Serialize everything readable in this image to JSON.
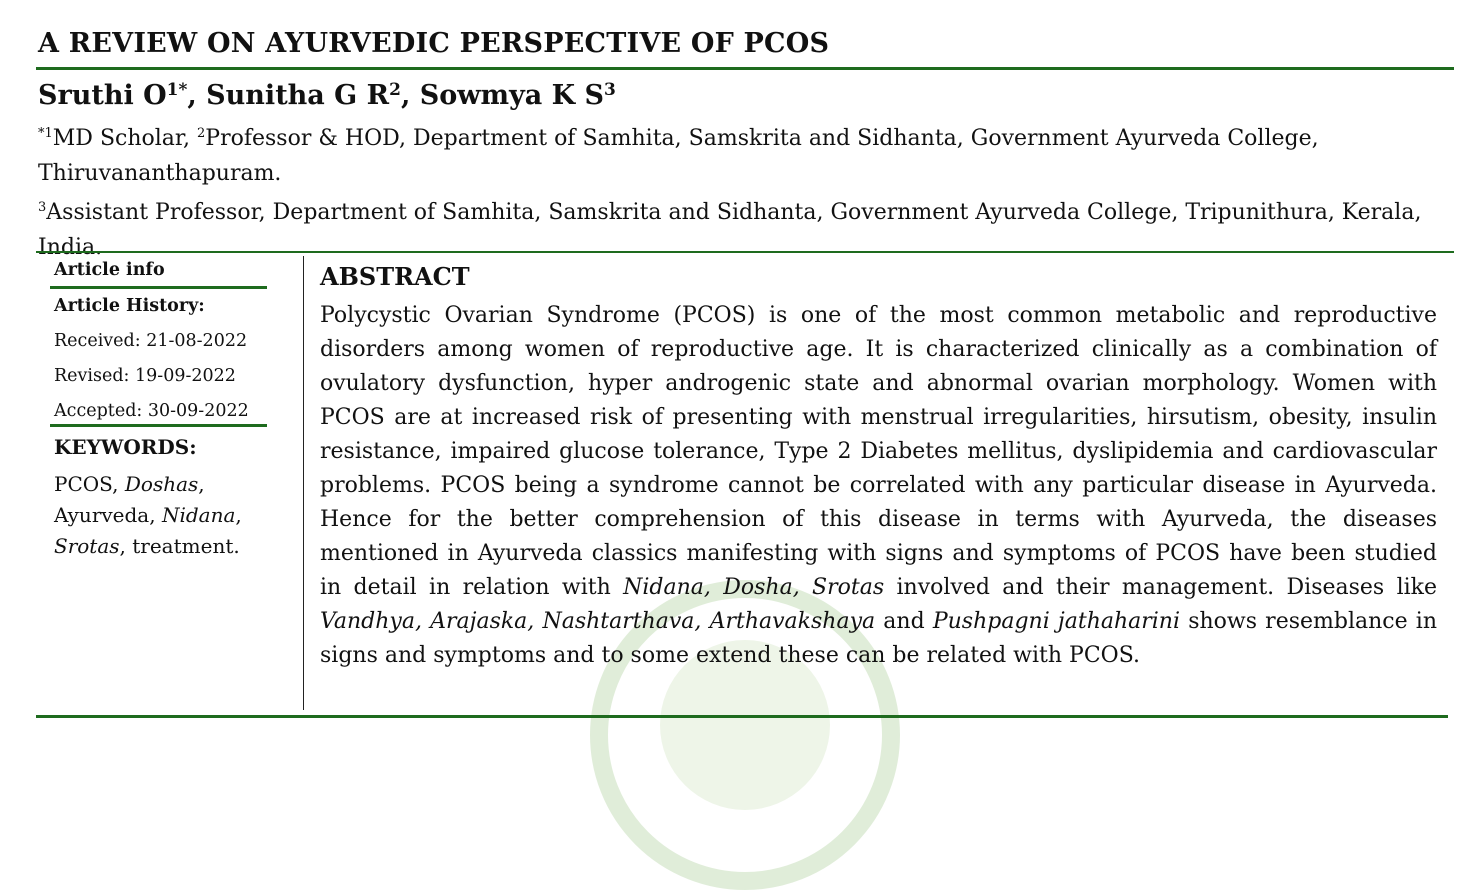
{
  "title": "A REVIEW ON AYURVEDIC PERSPECTIVE OF PCOS",
  "authors": {
    "a1": "Sruthi O",
    "a1_sup": "1*",
    "sep1": ", ",
    "a2": "Sunitha G R",
    "a2_sup": "2",
    "sep2": ", ",
    "a3": "Sowmya K S",
    "a3_sup": "3"
  },
  "affiliations": {
    "line1_sup1": "*1",
    "line1_part1": "MD Scholar, ",
    "line1_sup2": "2",
    "line1_part2": "Professor & HOD, Department of Samhita, Samskrita and Sidhanta, Government Ayurveda College, Thiruvananthapuram.",
    "line2_sup": "3",
    "line2_text": "Assistant Professor, Department of Samhita, Samskrita and Sidhanta, Government Ayurveda College, Tripunithura, Kerala, India."
  },
  "sidebar": {
    "article_info": "Article info",
    "article_history": "Article History:",
    "received": "Received: 21-08-2022",
    "revised": "Revised: 19-09-2022",
    "accepted": "Accepted: 30-09-2022",
    "keywords_heading": "KEYWORDS:",
    "kw": {
      "k1": "PCOS",
      "s1": ", ",
      "k2": "Doshas",
      "s2": ",",
      "k3": "Ayurveda",
      "s3": ", ",
      "k4": "Nidana",
      "s4": ",",
      "k5": "Srotas",
      "s5": ", treatment."
    }
  },
  "abstract": {
    "heading": "ABSTRACT",
    "p1": "Polycystic Ovarian Syndrome (PCOS) is one of the most common metabolic and reproductive disorders among women of reproductive age. It is characterized clinically as a combination of ovulatory dysfunction, hyper androgenic state and abnormal ovarian morphology. Women with PCOS are at increased risk of presenting with menstrual irregularities, hirsutism, obesity, insulin resistance, impaired glucose tolerance, Type 2 Diabetes mellitus, dyslipidemia and cardiovascular problems. PCOS being a syndrome cannot be correlated with any particular disease in Ayurveda. Hence for the better comprehension of this disease in terms with Ayurveda, the diseases mentioned in Ayurveda classics manifesting with signs and symptoms of PCOS have been studied in detail in relation with ",
    "i1": "Nidana, Dosha, Srotas",
    "p2": " involved and their management. Diseases like ",
    "i2": "Vandhya, Arajaska, Nashtarthava, Arthavakshaya",
    "p3": " and ",
    "i3": "Pushpagni jathaharini",
    "p4": " shows resemblance in signs and symptoms and to some extend these can be related with PCOS."
  },
  "colors": {
    "rule": "#1e6b1e",
    "watermark": "#d8e9cf"
  },
  "icons": {
    "watermark": "college-seal-watermark"
  }
}
